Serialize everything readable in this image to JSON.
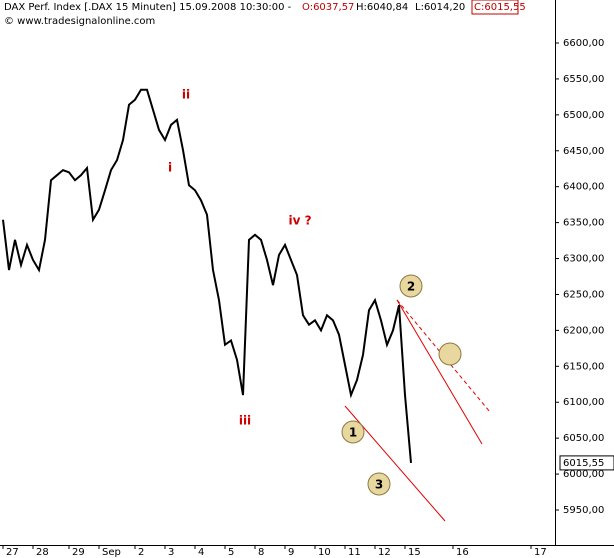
{
  "chart_data": {
    "type": "line",
    "header": {
      "title": "DAX Perf. Index [.DAX  15 Minuten] 15.09.2008 10:30:00 -",
      "open": "O:6037,57",
      "high": "H:6040,84",
      "low": "L:6014,20",
      "close": "C:6015,55"
    },
    "watermark": "© www.tradesignalonline.com",
    "categories": [
      "27",
      null,
      null,
      null,
      null,
      "28",
      null,
      null,
      null,
      null,
      null,
      "29",
      null,
      null,
      null,
      null,
      "Sep",
      null,
      null,
      null,
      null,
      null,
      "2",
      null,
      null,
      null,
      null,
      "3",
      null,
      null,
      null,
      null,
      "4",
      null,
      null,
      null,
      null,
      "5",
      null,
      null,
      null,
      null,
      "8",
      null,
      null,
      null,
      null,
      "9",
      null,
      null,
      null,
      null,
      "10",
      null,
      null,
      null,
      null,
      "11",
      null,
      null,
      null,
      null,
      "12",
      null,
      null,
      null,
      null,
      "15",
      null,
      null,
      null,
      null,
      null,
      null,
      null,
      "16",
      null,
      null,
      null,
      null,
      null,
      null,
      null,
      null,
      null,
      null,
      null,
      null,
      "17",
      null,
      null,
      null,
      null
    ],
    "series": [
      {
        "name": "DAX",
        "color": "#000000",
        "values": [
          6354,
          6284,
          6326,
          6291,
          6319,
          6298,
          6284,
          6326,
          6409,
          6416,
          6423,
          6420,
          6409,
          6416,
          6426,
          6354,
          6368,
          6395,
          6423,
          6437,
          6465,
          6514,
          6521,
          6535,
          6535,
          6507,
          6479,
          6465,
          6486,
          6493,
          6451,
          6402,
          6395,
          6381,
          6361,
          6284,
          6242,
          6180,
          6186,
          6159,
          6110,
          6326,
          6333,
          6326,
          6298,
          6263,
          6305,
          6319,
          6298,
          6277,
          6221,
          6208,
          6214,
          6200,
          6221,
          6214,
          6194,
          6152,
          6110,
          6131,
          6166,
          6228,
          6242,
          6214,
          6180,
          6200,
          6235,
          6110,
          6015.55,
          null,
          null,
          null,
          null,
          null,
          null,
          null,
          null,
          null,
          null,
          null,
          null,
          null,
          null,
          null,
          null,
          null,
          null,
          null,
          null,
          null,
          null,
          null,
          null
        ]
      }
    ],
    "ylim": [
      5913,
      6658
    ],
    "yticks": [
      {
        "value": 5950,
        "label": "5950,00"
      },
      {
        "value": 6000,
        "label": "6000,00"
      },
      {
        "value": 6050,
        "label": "6050,00"
      },
      {
        "value": 6100,
        "label": "6100,00"
      },
      {
        "value": 6150,
        "label": "6150,00"
      },
      {
        "value": 6200,
        "label": "6200,00"
      },
      {
        "value": 6250,
        "label": "6250,00"
      },
      {
        "value": 6300,
        "label": "6300,00"
      },
      {
        "value": 6350,
        "label": "6350,00"
      },
      {
        "value": 6400,
        "label": "6400,00"
      },
      {
        "value": 6450,
        "label": "6450,00"
      },
      {
        "value": 6500,
        "label": "6500,00"
      },
      {
        "value": 6550,
        "label": "6550,00"
      },
      {
        "value": 6600,
        "label": "6600,00"
      }
    ],
    "last_price_label": "6015,55",
    "wave_labels": [
      "ii",
      "i",
      "iii",
      "iv ?"
    ],
    "circle_labels": [
      "1",
      "2",
      "3"
    ]
  }
}
